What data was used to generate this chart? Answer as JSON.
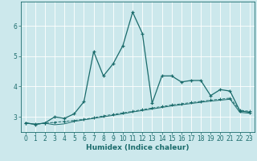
{
  "title": "",
  "xlabel": "Humidex (Indice chaleur)",
  "bg_color": "#cce8ec",
  "line_color": "#1a6b6b",
  "grid_color": "#aacccc",
  "xlim": [
    -0.5,
    23.5
  ],
  "ylim": [
    2.5,
    6.8
  ],
  "xticks": [
    0,
    1,
    2,
    3,
    4,
    5,
    6,
    7,
    8,
    9,
    10,
    11,
    12,
    13,
    14,
    15,
    16,
    17,
    18,
    19,
    20,
    21,
    22,
    23
  ],
  "yticks": [
    3,
    4,
    5,
    6
  ],
  "series1_x": [
    0,
    1,
    2,
    3,
    4,
    5,
    6,
    7,
    8,
    9,
    10,
    11,
    12,
    13,
    14,
    15,
    16,
    17,
    18,
    19,
    20,
    21,
    22,
    23
  ],
  "series1_y": [
    2.8,
    2.75,
    2.8,
    3.0,
    2.95,
    3.1,
    3.5,
    5.15,
    4.35,
    4.75,
    5.35,
    6.45,
    5.75,
    3.45,
    4.35,
    4.35,
    4.15,
    4.2,
    4.2,
    3.7,
    3.9,
    3.85,
    3.2,
    3.15
  ],
  "series2_x": [
    0,
    1,
    2,
    3,
    4,
    5,
    6,
    7,
    8,
    9,
    10,
    11,
    12,
    13,
    14,
    15,
    16,
    17,
    18,
    19,
    20,
    21,
    22,
    23
  ],
  "series2_y": [
    2.8,
    2.76,
    2.79,
    2.82,
    2.85,
    2.88,
    2.92,
    2.97,
    3.03,
    3.08,
    3.13,
    3.18,
    3.24,
    3.29,
    3.34,
    3.39,
    3.43,
    3.47,
    3.51,
    3.55,
    3.58,
    3.62,
    3.22,
    3.18
  ],
  "series3_x": [
    0,
    1,
    2,
    3,
    4,
    5,
    6,
    7,
    8,
    9,
    10,
    11,
    12,
    13,
    14,
    15,
    16,
    17,
    18,
    19,
    20,
    21,
    22,
    23
  ],
  "series3_y": [
    2.8,
    2.76,
    2.79,
    2.74,
    2.77,
    2.85,
    2.9,
    2.95,
    3.0,
    3.05,
    3.1,
    3.16,
    3.21,
    3.26,
    3.31,
    3.36,
    3.4,
    3.44,
    3.48,
    3.52,
    3.55,
    3.58,
    3.15,
    3.12
  ],
  "xlabel_fontsize": 6.5,
  "tick_fontsize": 5.5,
  "linewidth1": 0.9,
  "linewidth2": 0.7,
  "linewidth3": 0.7,
  "markersize1": 3.5,
  "markersize2": 2.5
}
